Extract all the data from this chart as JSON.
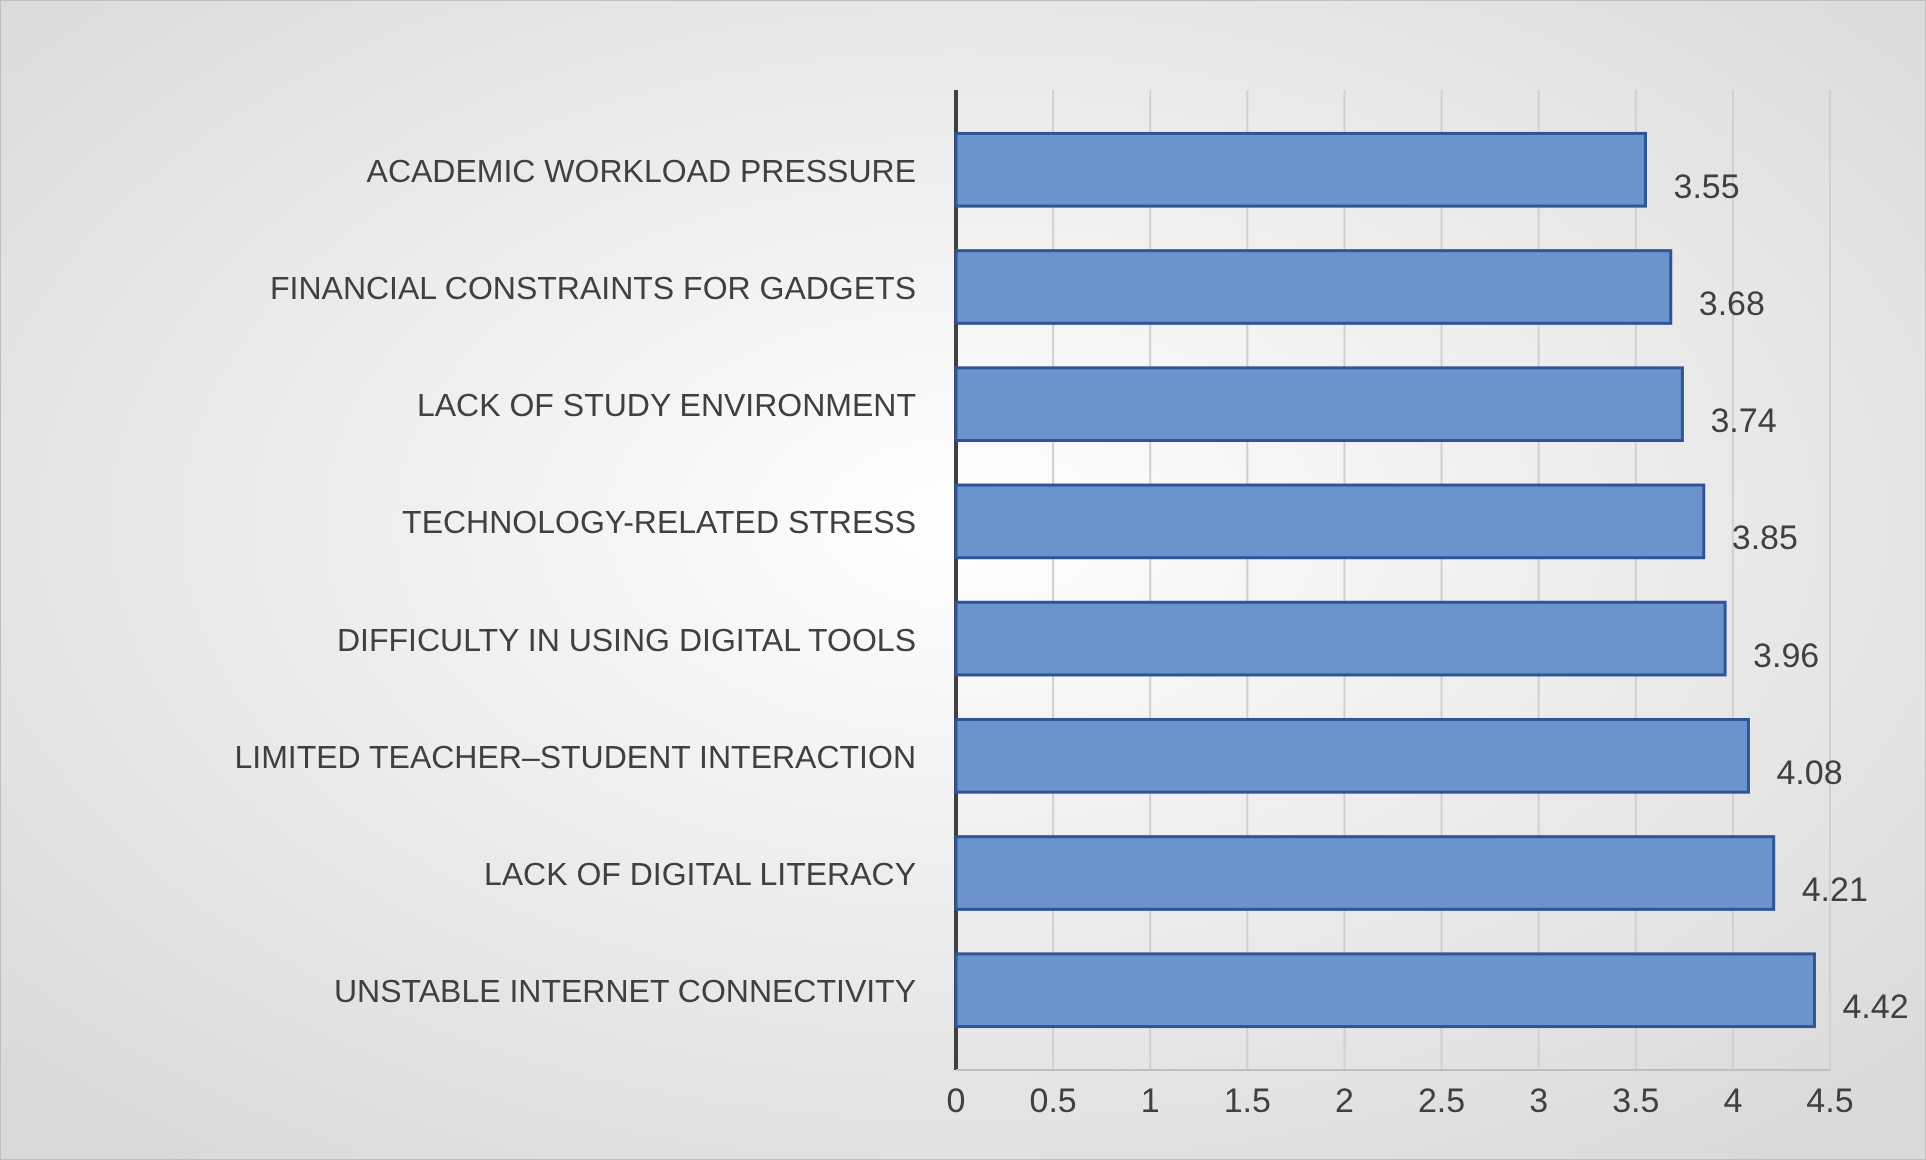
{
  "chart_data": {
    "type": "bar",
    "orientation": "horizontal",
    "categories": [
      "ACADEMIC WORKLOAD PRESSURE",
      "FINANCIAL CONSTRAINTS FOR GADGETS",
      "LACK OF STUDY ENVIRONMENT",
      "TECHNOLOGY-RELATED STRESS",
      "DIFFICULTY IN USING DIGITAL TOOLS",
      "LIMITED TEACHER–STUDENT INTERACTION",
      "LACK OF DIGITAL LITERACY",
      "UNSTABLE INTERNET CONNECTIVITY"
    ],
    "values": [
      3.55,
      3.68,
      3.74,
      3.85,
      3.96,
      4.08,
      4.21,
      4.42
    ],
    "color": "#6b94cd",
    "xlim": [
      0,
      4.5
    ],
    "xticks": [
      0,
      0.5,
      1,
      1.5,
      2,
      2.5,
      3,
      3.5,
      4,
      4.5
    ],
    "grid": "x",
    "data_labels": true
  }
}
